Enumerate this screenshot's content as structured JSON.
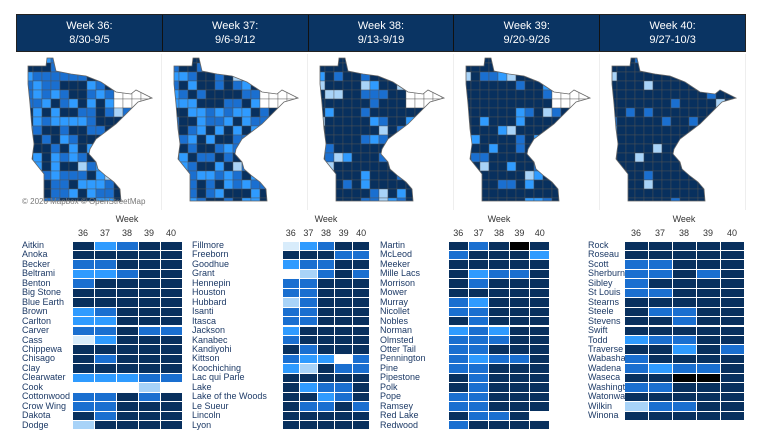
{
  "weeks": [
    {
      "title": "Week 36:",
      "range": "8/30-9/5"
    },
    {
      "title": "Week 37:",
      "range": "9/6-9/12"
    },
    {
      "title": "Week 38:",
      "range": "9/13-9/19"
    },
    {
      "title": "Week 39:",
      "range": "9/20-9/26"
    },
    {
      "title": "Week 40:",
      "range": "9/27-10/3"
    }
  ],
  "map_attribution": "© 2020 Mapbox © OpenStreetMap",
  "colors": {
    "D": "#08305e",
    "M": "#1a6fd0",
    "L": "#2f9bff",
    "P": "#a8d3f8",
    "V": "#d8ecfb",
    "W": "#ffffff",
    "B": "#000000"
  },
  "table_header": {
    "label": "Week",
    "columns": [
      "36",
      "37",
      "38",
      "39",
      "40"
    ]
  },
  "tables": [
    {
      "rows": [
        {
          "county": "Aitkin",
          "cells": "DLMDD"
        },
        {
          "county": "Anoka",
          "cells": "DDDDD"
        },
        {
          "county": "Becker",
          "cells": "MMDDD"
        },
        {
          "county": "Beltrami",
          "cells": "LLMDD"
        },
        {
          "county": "Benton",
          "cells": "MDDDD"
        },
        {
          "county": "Big Stone",
          "cells": "DDDDD"
        },
        {
          "county": "Blue Earth",
          "cells": "DDDDD"
        },
        {
          "county": "Brown",
          "cells": "LMDDD"
        },
        {
          "county": "Carlton",
          "cells": "LLDDD"
        },
        {
          "county": "Carver",
          "cells": "MMDMM"
        },
        {
          "county": "Cass",
          "cells": "VLDDD"
        },
        {
          "county": "Chippewa",
          "cells": "DDDDD"
        },
        {
          "county": "Chisago",
          "cells": "DMDDD"
        },
        {
          "county": "Clay",
          "cells": "DDDDD"
        },
        {
          "county": "Clearwater",
          "cells": "LLLMM"
        },
        {
          "county": "Cook",
          "cells": "WWWPW"
        },
        {
          "county": "Cottonwood",
          "cells": "MMDMD"
        },
        {
          "county": "Crow Wing",
          "cells": "MMDDD"
        },
        {
          "county": "Dakota",
          "cells": "DMDDD"
        },
        {
          "county": "Dodge",
          "cells": "PDDDD"
        }
      ]
    },
    {
      "rows": [
        {
          "county": "Fillmore",
          "cells": "VLMDD"
        },
        {
          "county": "Freeborn",
          "cells": "DDDMM"
        },
        {
          "county": "Goodhue",
          "cells": "LMMDD"
        },
        {
          "county": "Grant",
          "cells": "WPMDM"
        },
        {
          "county": "Hennepin",
          "cells": "MMDDD"
        },
        {
          "county": "Houston",
          "cells": "MMDDD"
        },
        {
          "county": "Hubbard",
          "cells": "PMDDD"
        },
        {
          "county": "Isanti",
          "cells": "MMDDD"
        },
        {
          "county": "Itasca",
          "cells": "MMDDD"
        },
        {
          "county": "Jackson",
          "cells": "LDDDD"
        },
        {
          "county": "Kanabec",
          "cells": "MDDDD"
        },
        {
          "county": "Kandiyohi",
          "cells": "DMDDD"
        },
        {
          "county": "Kittson",
          "cells": "MLLWM"
        },
        {
          "county": "Koochiching",
          "cells": "LPDMM"
        },
        {
          "county": "Lac qui Parle",
          "cells": "DDDDD"
        },
        {
          "county": "Lake",
          "cells": "DLMMD"
        },
        {
          "county": "Lake of the Woods",
          "cells": "DDLMD"
        },
        {
          "county": "Le Sueur",
          "cells": "DMMDM"
        },
        {
          "county": "Lincoln",
          "cells": "DDDDD"
        },
        {
          "county": "Lyon",
          "cells": "DDDDD"
        }
      ]
    },
    {
      "rows": [
        {
          "county": "Martin",
          "cells": "DMDBD"
        },
        {
          "county": "McLeod",
          "cells": "MDDDL"
        },
        {
          "county": "Meeker",
          "cells": "DDDDD"
        },
        {
          "county": "Mille Lacs",
          "cells": "DLMMD"
        },
        {
          "county": "Morrison",
          "cells": "DMDDD"
        },
        {
          "county": "Mower",
          "cells": "DDDDD"
        },
        {
          "county": "Murray",
          "cells": "MLDDD"
        },
        {
          "county": "Nicollet",
          "cells": "MMDDD"
        },
        {
          "county": "Nobles",
          "cells": "DMDDD"
        },
        {
          "county": "Norman",
          "cells": "LMLDD"
        },
        {
          "county": "Olmsted",
          "cells": "MMMDD"
        },
        {
          "county": "Otter Tail",
          "cells": "MMDDD"
        },
        {
          "county": "Pennington",
          "cells": "MLMMD"
        },
        {
          "county": "Pine",
          "cells": "MMDDD"
        },
        {
          "county": "Pipestone",
          "cells": "DMDDD"
        },
        {
          "county": "Polk",
          "cells": "DMDDD"
        },
        {
          "county": "Pope",
          "cells": "MMDDD"
        },
        {
          "county": "Ramsey",
          "cells": "MMDDD"
        },
        {
          "county": "Red Lake",
          "cells": "DMMDW"
        },
        {
          "county": "Redwood",
          "cells": "MDDDD"
        }
      ]
    },
    {
      "rows": [
        {
          "county": "Rock",
          "cells": "DDDDD"
        },
        {
          "county": "Roseau",
          "cells": "DDDDD"
        },
        {
          "county": "Scott",
          "cells": "MMDDD"
        },
        {
          "county": "Sherburne",
          "cells": "MMDMD"
        },
        {
          "county": "Sibley",
          "cells": "MDDDD"
        },
        {
          "county": "St Louis",
          "cells": "MMDDD"
        },
        {
          "county": "Stearns",
          "cells": "DDDDD"
        },
        {
          "county": "Steele",
          "cells": "DMMDD"
        },
        {
          "county": "Stevens",
          "cells": "DDMDD"
        },
        {
          "county": "Swift",
          "cells": "DDDDD"
        },
        {
          "county": "Todd",
          "cells": "LMMDD"
        },
        {
          "county": "Traverse",
          "cells": "DDLDM"
        },
        {
          "county": "Wabasha",
          "cells": "MDDDD"
        },
        {
          "county": "Wadena",
          "cells": "MLMMD"
        },
        {
          "county": "Waseca",
          "cells": "DDBBD"
        },
        {
          "county": "Washington",
          "cells": "MMDDD"
        },
        {
          "county": "Watonwan",
          "cells": "DDDDD"
        },
        {
          "county": "Wilkin",
          "cells": "PMMDD"
        },
        {
          "county": "Winona",
          "cells": "DDDDD"
        }
      ]
    }
  ]
}
